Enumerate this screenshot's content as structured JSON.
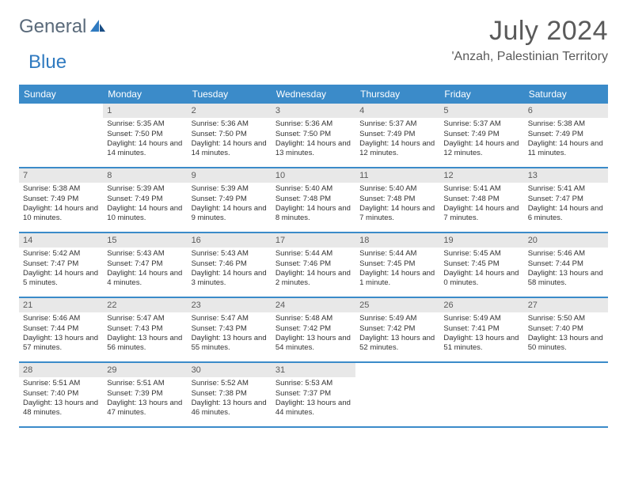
{
  "brand": {
    "text1": "General",
    "text2": "Blue"
  },
  "title": {
    "month": "July 2024",
    "location": "'Anzah, Palestinian Territory"
  },
  "header_bg": "#3b8bc9",
  "dayNames": [
    "Sunday",
    "Monday",
    "Tuesday",
    "Wednesday",
    "Thursday",
    "Friday",
    "Saturday"
  ],
  "weeks": [
    [
      null,
      {
        "n": "1",
        "r": "5:35 AM",
        "s": "7:50 PM",
        "d": "14 hours and 14 minutes."
      },
      {
        "n": "2",
        "r": "5:36 AM",
        "s": "7:50 PM",
        "d": "14 hours and 14 minutes."
      },
      {
        "n": "3",
        "r": "5:36 AM",
        "s": "7:50 PM",
        "d": "14 hours and 13 minutes."
      },
      {
        "n": "4",
        "r": "5:37 AM",
        "s": "7:49 PM",
        "d": "14 hours and 12 minutes."
      },
      {
        "n": "5",
        "r": "5:37 AM",
        "s": "7:49 PM",
        "d": "14 hours and 12 minutes."
      },
      {
        "n": "6",
        "r": "5:38 AM",
        "s": "7:49 PM",
        "d": "14 hours and 11 minutes."
      }
    ],
    [
      {
        "n": "7",
        "r": "5:38 AM",
        "s": "7:49 PM",
        "d": "14 hours and 10 minutes."
      },
      {
        "n": "8",
        "r": "5:39 AM",
        "s": "7:49 PM",
        "d": "14 hours and 10 minutes."
      },
      {
        "n": "9",
        "r": "5:39 AM",
        "s": "7:49 PM",
        "d": "14 hours and 9 minutes."
      },
      {
        "n": "10",
        "r": "5:40 AM",
        "s": "7:48 PM",
        "d": "14 hours and 8 minutes."
      },
      {
        "n": "11",
        "r": "5:40 AM",
        "s": "7:48 PM",
        "d": "14 hours and 7 minutes."
      },
      {
        "n": "12",
        "r": "5:41 AM",
        "s": "7:48 PM",
        "d": "14 hours and 7 minutes."
      },
      {
        "n": "13",
        "r": "5:41 AM",
        "s": "7:47 PM",
        "d": "14 hours and 6 minutes."
      }
    ],
    [
      {
        "n": "14",
        "r": "5:42 AM",
        "s": "7:47 PM",
        "d": "14 hours and 5 minutes."
      },
      {
        "n": "15",
        "r": "5:43 AM",
        "s": "7:47 PM",
        "d": "14 hours and 4 minutes."
      },
      {
        "n": "16",
        "r": "5:43 AM",
        "s": "7:46 PM",
        "d": "14 hours and 3 minutes."
      },
      {
        "n": "17",
        "r": "5:44 AM",
        "s": "7:46 PM",
        "d": "14 hours and 2 minutes."
      },
      {
        "n": "18",
        "r": "5:44 AM",
        "s": "7:45 PM",
        "d": "14 hours and 1 minute."
      },
      {
        "n": "19",
        "r": "5:45 AM",
        "s": "7:45 PM",
        "d": "14 hours and 0 minutes."
      },
      {
        "n": "20",
        "r": "5:46 AM",
        "s": "7:44 PM",
        "d": "13 hours and 58 minutes."
      }
    ],
    [
      {
        "n": "21",
        "r": "5:46 AM",
        "s": "7:44 PM",
        "d": "13 hours and 57 minutes."
      },
      {
        "n": "22",
        "r": "5:47 AM",
        "s": "7:43 PM",
        "d": "13 hours and 56 minutes."
      },
      {
        "n": "23",
        "r": "5:47 AM",
        "s": "7:43 PM",
        "d": "13 hours and 55 minutes."
      },
      {
        "n": "24",
        "r": "5:48 AM",
        "s": "7:42 PM",
        "d": "13 hours and 54 minutes."
      },
      {
        "n": "25",
        "r": "5:49 AM",
        "s": "7:42 PM",
        "d": "13 hours and 52 minutes."
      },
      {
        "n": "26",
        "r": "5:49 AM",
        "s": "7:41 PM",
        "d": "13 hours and 51 minutes."
      },
      {
        "n": "27",
        "r": "5:50 AM",
        "s": "7:40 PM",
        "d": "13 hours and 50 minutes."
      }
    ],
    [
      {
        "n": "28",
        "r": "5:51 AM",
        "s": "7:40 PM",
        "d": "13 hours and 48 minutes."
      },
      {
        "n": "29",
        "r": "5:51 AM",
        "s": "7:39 PM",
        "d": "13 hours and 47 minutes."
      },
      {
        "n": "30",
        "r": "5:52 AM",
        "s": "7:38 PM",
        "d": "13 hours and 46 minutes."
      },
      {
        "n": "31",
        "r": "5:53 AM",
        "s": "7:37 PM",
        "d": "13 hours and 44 minutes."
      },
      null,
      null,
      null
    ]
  ],
  "labels": {
    "sunrise": "Sunrise:",
    "sunset": "Sunset:",
    "daylight": "Daylight:"
  }
}
